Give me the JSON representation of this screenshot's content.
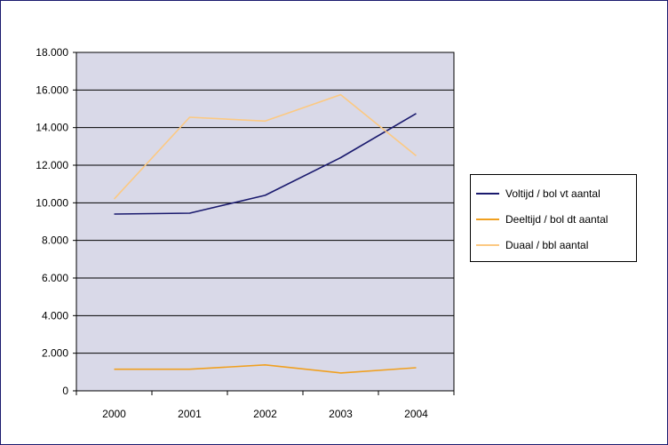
{
  "chart_data": {
    "type": "line",
    "title": "",
    "xlabel": "",
    "ylabel": "",
    "categories": [
      "2000",
      "2001",
      "2002",
      "2003",
      "2004"
    ],
    "y_ticks": [
      "0",
      "2.000",
      "4.000",
      "6.000",
      "8.000",
      "10.000",
      "12.000",
      "14.000",
      "16.000",
      "18.000"
    ],
    "ylim": [
      0,
      18000
    ],
    "grid": true,
    "legend_position": "right",
    "plot_background": "#d9d9e8",
    "series": [
      {
        "name": "Voltijd / bol vt aantal",
        "color": "#1a1a6e",
        "values": [
          9400,
          9450,
          10400,
          12400,
          14750
        ]
      },
      {
        "name": "Deeltijd / bol dt aantal",
        "color": "#f0a020",
        "values": [
          1150,
          1150,
          1380,
          950,
          1230
        ]
      },
      {
        "name": "Duaal / bbl aantal",
        "color": "#fcc982",
        "values": [
          10200,
          14550,
          14350,
          15750,
          12500
        ]
      }
    ]
  }
}
